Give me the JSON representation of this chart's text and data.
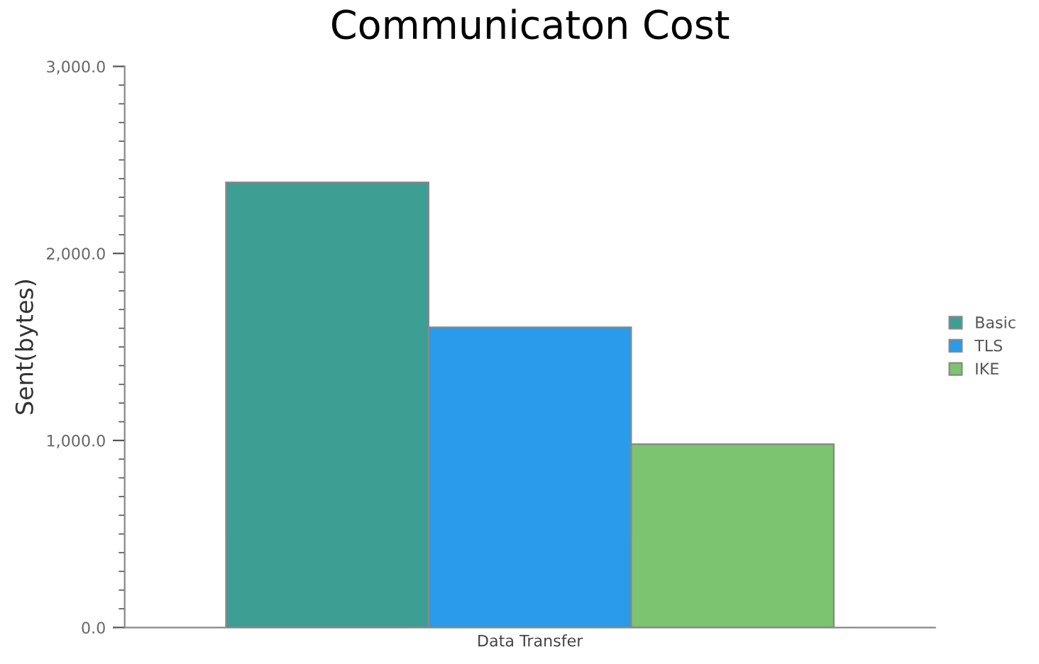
{
  "chart_data": {
    "type": "bar",
    "title": "Communicaton Cost",
    "ylabel": "Sent(bytes)",
    "categories": [
      "Data Transfer"
    ],
    "series": [
      {
        "name": "Basic",
        "color": "#3d9e94",
        "values": [
          2380
        ]
      },
      {
        "name": "TLS",
        "color": "#2a9bea",
        "values": [
          1605
        ]
      },
      {
        "name": "IKE",
        "color": "#7cc46f",
        "values": [
          980
        ]
      }
    ],
    "ylim": [
      0,
      3000
    ],
    "yticks": [
      {
        "value": 0,
        "label": "0.0"
      },
      {
        "value": 1000,
        "label": "1,000.0"
      },
      {
        "value": 2000,
        "label": "2,000.0"
      },
      {
        "value": 3000,
        "label": "3,000.0"
      }
    ],
    "grid": false,
    "legend": "right"
  }
}
